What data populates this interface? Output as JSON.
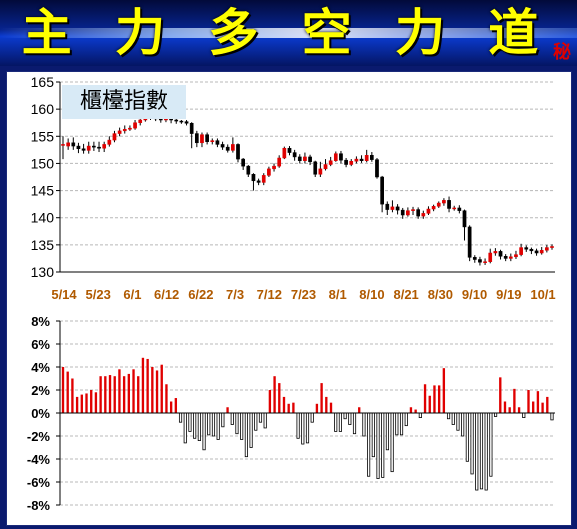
{
  "banner": {
    "title_chars": [
      "主",
      "力",
      "多",
      "空",
      "力",
      "道"
    ],
    "secret": "秘"
  },
  "chart_data": [
    {
      "type": "candlestick",
      "title": "櫃檯指數",
      "ylim": [
        130,
        165
      ],
      "y_ticks": [
        "165",
        "160",
        "155",
        "150",
        "145",
        "140",
        "135",
        "130"
      ],
      "x_tick_labels": [
        "5/14",
        "5/23",
        "6/1",
        "6/12",
        "6/22",
        "7/3",
        "7/12",
        "7/23",
        "8/1",
        "8/10",
        "8/21",
        "8/30",
        "9/10",
        "9/19",
        "10/1"
      ],
      "grid": true,
      "up_color": "#e00000",
      "down_color": "#000000",
      "candles": [
        [
          153.5,
          153.5,
          155.0,
          150.8
        ],
        [
          153.2,
          153.8,
          154.6,
          152.5
        ],
        [
          153.8,
          153.2,
          154.8,
          152.5
        ],
        [
          153.2,
          152.7,
          153.8,
          151.9
        ],
        [
          152.7,
          152.4,
          153.6,
          151.8
        ],
        [
          152.4,
          153.2,
          154.0,
          151.8
        ],
        [
          153.2,
          153.0,
          154.0,
          152.3
        ],
        [
          153.0,
          152.8,
          154.0,
          152.1
        ],
        [
          152.8,
          153.5,
          154.0,
          152.1
        ],
        [
          153.5,
          154.3,
          155.0,
          153.1
        ],
        [
          154.3,
          155.5,
          156.0,
          153.9
        ],
        [
          155.5,
          156.0,
          156.6,
          155.0
        ],
        [
          156.0,
          156.3,
          157.0,
          155.5
        ],
        [
          156.3,
          156.5,
          157.0,
          156.0
        ],
        [
          156.5,
          157.5,
          158.0,
          156.2
        ],
        [
          157.5,
          158.0,
          158.5,
          157.0
        ],
        [
          158.0,
          158.3,
          158.7,
          157.7
        ],
        [
          158.3,
          158.5,
          159.0,
          158.0
        ],
        [
          158.5,
          158.2,
          158.9,
          157.8
        ],
        [
          158.2,
          158.0,
          158.5,
          157.5
        ],
        [
          158.0,
          158.2,
          158.6,
          157.6
        ],
        [
          158.2,
          158.0,
          158.5,
          157.4
        ],
        [
          158.0,
          157.8,
          158.2,
          157.3
        ],
        [
          157.8,
          157.7,
          158.0,
          157.3
        ],
        [
          157.7,
          157.4,
          158.0,
          157.0
        ],
        [
          157.4,
          155.5,
          157.6,
          152.8
        ],
        [
          155.5,
          153.8,
          156.0,
          153.0
        ],
        [
          153.8,
          155.3,
          155.7,
          153.0
        ],
        [
          155.3,
          154.0,
          155.7,
          153.5
        ],
        [
          154.0,
          154.2,
          154.6,
          153.5
        ],
        [
          154.2,
          153.5,
          154.6,
          153.0
        ],
        [
          153.5,
          153.0,
          154.0,
          152.5
        ],
        [
          153.0,
          152.4,
          153.5,
          152.0
        ],
        [
          152.4,
          153.5,
          154.8,
          152.0
        ],
        [
          153.5,
          150.8,
          153.7,
          150.2
        ],
        [
          150.8,
          149.5,
          151.0,
          148.8
        ],
        [
          149.5,
          148.0,
          149.7,
          147.5
        ],
        [
          148.0,
          146.8,
          148.2,
          145.0
        ],
        [
          146.8,
          146.5,
          147.2,
          146.0
        ],
        [
          146.5,
          147.8,
          148.2,
          146.0
        ],
        [
          147.8,
          149.0,
          149.4,
          147.5
        ],
        [
          149.0,
          149.5,
          150.0,
          148.5
        ],
        [
          149.5,
          151.0,
          151.5,
          149.2
        ],
        [
          151.0,
          152.8,
          153.1,
          150.8
        ],
        [
          152.8,
          152.0,
          153.2,
          151.5
        ],
        [
          152.0,
          151.2,
          152.5,
          150.5
        ],
        [
          151.2,
          150.5,
          151.7,
          150.0
        ],
        [
          150.5,
          151.2,
          152.0,
          150.0
        ],
        [
          151.2,
          150.3,
          151.6,
          149.7
        ],
        [
          150.3,
          148.0,
          150.5,
          147.5
        ],
        [
          148.0,
          149.0,
          150.3,
          147.5
        ],
        [
          149.0,
          149.8,
          150.8,
          148.7
        ],
        [
          149.8,
          150.5,
          151.2,
          149.5
        ],
        [
          150.5,
          151.8,
          152.2,
          150.3
        ],
        [
          151.8,
          150.6,
          152.3,
          150.0
        ],
        [
          150.6,
          149.8,
          151.0,
          149.3
        ],
        [
          149.8,
          150.4,
          150.8,
          149.5
        ],
        [
          150.4,
          150.8,
          151.3,
          150.0
        ],
        [
          150.8,
          150.5,
          151.5,
          150.1
        ],
        [
          150.5,
          151.5,
          152.5,
          150.2
        ],
        [
          151.5,
          150.7,
          152.1,
          150.3
        ],
        [
          150.7,
          147.5,
          151.0,
          147.2
        ],
        [
          147.5,
          142.5,
          147.7,
          141.0
        ],
        [
          142.5,
          141.5,
          143.0,
          140.5
        ],
        [
          141.5,
          142.0,
          143.2,
          141.0
        ],
        [
          142.0,
          141.4,
          142.5,
          140.6
        ],
        [
          141.4,
          140.5,
          141.8,
          139.8
        ],
        [
          140.5,
          141.3,
          141.9,
          140.2
        ],
        [
          141.3,
          141.5,
          142.0,
          140.5
        ],
        [
          141.5,
          140.3,
          141.9,
          139.8
        ],
        [
          140.3,
          140.8,
          141.3,
          139.8
        ],
        [
          140.8,
          141.6,
          142.1,
          140.5
        ],
        [
          141.6,
          142.1,
          142.4,
          141.2
        ],
        [
          142.1,
          142.7,
          143.0,
          141.8
        ],
        [
          142.7,
          143.2,
          143.6,
          142.2
        ],
        [
          143.2,
          141.7,
          143.9,
          141.0
        ],
        [
          141.7,
          141.8,
          142.2,
          141.3
        ],
        [
          141.8,
          141.3,
          142.3,
          140.8
        ],
        [
          141.3,
          138.3,
          141.5,
          135.8
        ],
        [
          138.3,
          132.7,
          138.6,
          132.0
        ],
        [
          132.7,
          132.3,
          133.1,
          131.7
        ],
        [
          132.3,
          131.8,
          132.8,
          131.2
        ],
        [
          131.8,
          131.9,
          132.5,
          131.3
        ],
        [
          131.9,
          133.5,
          134.3,
          131.6
        ],
        [
          133.5,
          133.8,
          134.4,
          133.0
        ],
        [
          133.8,
          132.9,
          134.1,
          132.3
        ],
        [
          132.9,
          132.5,
          133.3,
          132.0
        ],
        [
          132.5,
          132.8,
          133.4,
          132.0
        ],
        [
          132.8,
          133.2,
          133.9,
          132.4
        ],
        [
          133.2,
          134.5,
          135.2,
          132.9
        ],
        [
          134.5,
          134.2,
          134.9,
          133.7
        ],
        [
          134.2,
          133.9,
          134.5,
          133.3
        ],
        [
          133.9,
          133.5,
          134.3,
          133.0
        ],
        [
          133.5,
          134.0,
          134.6,
          133.2
        ],
        [
          134.0,
          134.5,
          135.0,
          133.6
        ],
        [
          134.5,
          134.7,
          135.1,
          134.1
        ]
      ]
    },
    {
      "type": "bar",
      "ylim": [
        -8,
        8
      ],
      "y_ticks": [
        "8%",
        "6%",
        "4%",
        "2%",
        "0%",
        "-2%",
        "-4%",
        "-6%",
        "-8%"
      ],
      "grid": true,
      "positive_color": "#e00000",
      "negative_color": "#ffffff",
      "values": [
        4.0,
        3.6,
        3.0,
        1.4,
        1.6,
        1.7,
        2.0,
        1.8,
        3.2,
        3.2,
        3.3,
        3.2,
        3.8,
        3.2,
        3.4,
        3.8,
        3.2,
        4.8,
        4.7,
        4.0,
        3.7,
        4.2,
        2.5,
        1.0,
        1.3,
        -0.8,
        -2.6,
        -1.6,
        -2.2,
        -2.4,
        -3.2,
        -1.9,
        -2.0,
        -2.3,
        -1.2,
        0.5,
        -1.0,
        -1.8,
        -2.3,
        -3.8,
        -3.0,
        -1.5,
        -0.8,
        -1.3,
        2.0,
        3.2,
        2.6,
        1.4,
        0.8,
        0.9,
        -2.2,
        -2.7,
        -2.6,
        -0.8,
        0.8,
        2.6,
        1.4,
        0.9,
        -1.6,
        -1.6,
        -0.5,
        -1.0,
        -1.8,
        0.5,
        -2.0,
        -5.5,
        -3.8,
        -5.7,
        -5.6,
        -3.2,
        -5.1,
        -1.9,
        -1.9,
        -1.1,
        0.5,
        0.3,
        -0.4,
        2.5,
        1.5,
        2.4,
        2.4,
        3.9,
        -0.5,
        -1.0,
        -1.5,
        -2.0,
        -4.2,
        -5.3,
        -6.7,
        -6.6,
        -6.7,
        -5.5,
        -0.3,
        3.1,
        1.0,
        0.5,
        2.1,
        0.5,
        -0.4,
        2.0,
        1.0,
        1.9,
        0.9,
        1.4,
        -0.6
      ]
    }
  ]
}
